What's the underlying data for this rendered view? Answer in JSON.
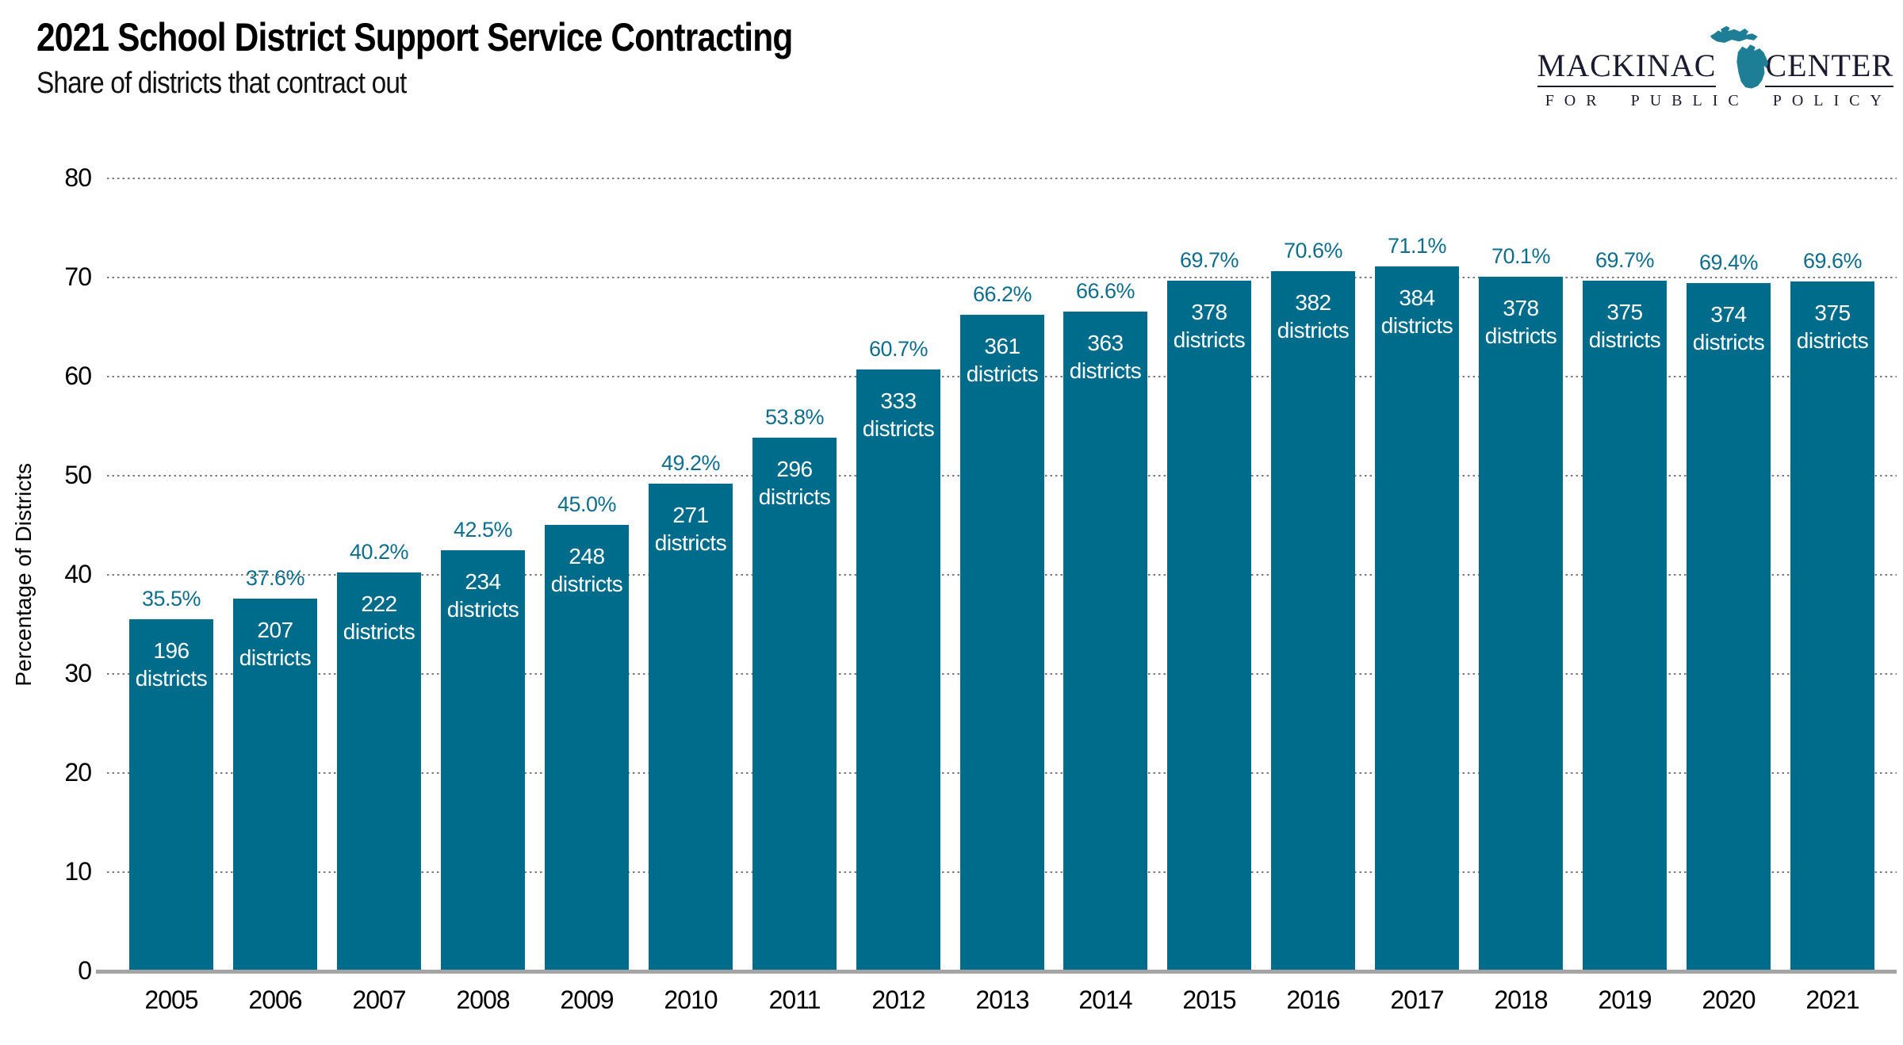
{
  "header": {
    "title": "2021 School District Support Service Contracting",
    "subtitle": "Share of districts that contract out"
  },
  "logo": {
    "name_left": "MACKINAC",
    "name_right": "CENTER",
    "tagline": "FOR PUBLIC POLICY",
    "michigan_color": "#1E7E95",
    "text_color": "#1B1B2F"
  },
  "chart_data": {
    "type": "bar",
    "title": "2021 School District Support Service Contracting",
    "subtitle": "Share of districts that contract out",
    "xlabel": "",
    "ylabel": "Percentage of Districts",
    "ylim": [
      0,
      80
    ],
    "yticks": [
      0,
      10,
      20,
      30,
      40,
      50,
      60,
      70,
      80
    ],
    "grid": "horizontal-dotted",
    "legend": "none",
    "bar_color": "#006C8B",
    "pct_label_color": "#0F6E8C",
    "categories": [
      "2005",
      "2006",
      "2007",
      "2008",
      "2009",
      "2010",
      "2011",
      "2012",
      "2013",
      "2014",
      "2015",
      "2016",
      "2017",
      "2018",
      "2019",
      "2020",
      "2021"
    ],
    "values": [
      35.5,
      37.6,
      40.2,
      42.5,
      45.0,
      49.2,
      53.8,
      60.7,
      66.2,
      66.6,
      69.7,
      70.6,
      71.1,
      70.1,
      69.7,
      69.4,
      69.6
    ],
    "pct_labels": [
      "35.5%",
      "37.6%",
      "40.2%",
      "42.5%",
      "45.0%",
      "49.2%",
      "53.8%",
      "60.7%",
      "66.2%",
      "66.6%",
      "69.7%",
      "70.6%",
      "71.1%",
      "70.1%",
      "69.7%",
      "69.4%",
      "69.6%"
    ],
    "district_counts": [
      196,
      207,
      222,
      234,
      248,
      271,
      296,
      333,
      361,
      363,
      378,
      382,
      384,
      378,
      375,
      374,
      375
    ],
    "count_suffix": "districts"
  }
}
